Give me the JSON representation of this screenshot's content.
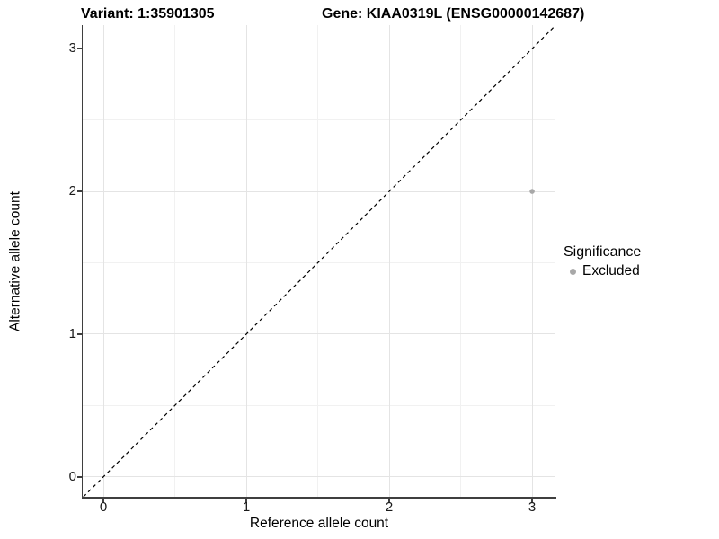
{
  "titles": {
    "variant": "Variant: 1:35901305",
    "gene": "Gene: KIAA0319L (ENSG00000142687)"
  },
  "axes": {
    "x": {
      "label": "Reference allele count",
      "tick_labels": [
        "0",
        "1",
        "2",
        "3"
      ]
    },
    "y": {
      "label": "Alternative allele count",
      "tick_labels": [
        "0",
        "1",
        "2",
        "3"
      ]
    }
  },
  "legend": {
    "title": "Significance",
    "items": [
      {
        "label": "Excluded",
        "color": "#a8a8a8"
      }
    ]
  },
  "colors": {
    "background": "#ffffff",
    "grid_major": "#e4e4e4",
    "grid_minor": "#f1f1f1",
    "axis_line": "#3f3f3f",
    "point": "#a8a8a8",
    "dashed_line": "#000000",
    "text": "#000000"
  },
  "chart_data": {
    "type": "scatter",
    "title": "Variant: 1:35901305   Gene: KIAA0319L (ENSG00000142687)",
    "xlabel": "Reference allele count",
    "ylabel": "Alternative allele count",
    "xlim": [
      -0.145,
      3.163
    ],
    "ylim": [
      -0.14,
      3.165
    ],
    "x_major_ticks": [
      0,
      1,
      2,
      3
    ],
    "y_major_ticks": [
      0,
      1,
      2,
      3
    ],
    "x_minor_ticks": [
      0.5,
      1.5,
      2.5
    ],
    "y_minor_ticks": [
      0.5,
      1.5,
      2.5
    ],
    "grid": "on",
    "legend_position": "right",
    "series": [
      {
        "name": "Excluded",
        "color": "#a8a8a8",
        "points": [
          {
            "x": 3,
            "y": 2
          }
        ]
      }
    ],
    "reference_line": {
      "type": "identity",
      "slope": 1,
      "intercept": 0,
      "style": "dashed",
      "color": "#000000"
    }
  }
}
